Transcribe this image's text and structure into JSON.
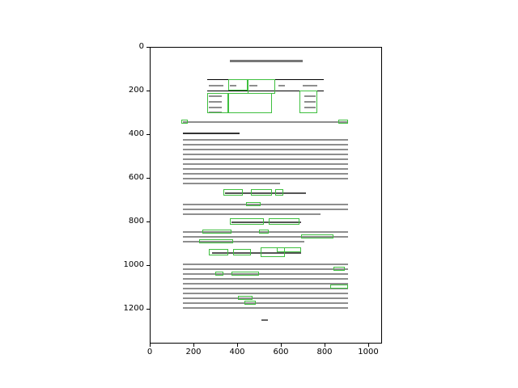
{
  "figure": {
    "x_ticks": [
      "0",
      "200",
      "400",
      "600",
      "800",
      "1000"
    ],
    "y_ticks": [
      "0",
      "200",
      "400",
      "600",
      "800",
      "1000",
      "1200"
    ]
  },
  "colors": {
    "box": "#3fbf3f",
    "text": "#7a7a7a"
  }
}
